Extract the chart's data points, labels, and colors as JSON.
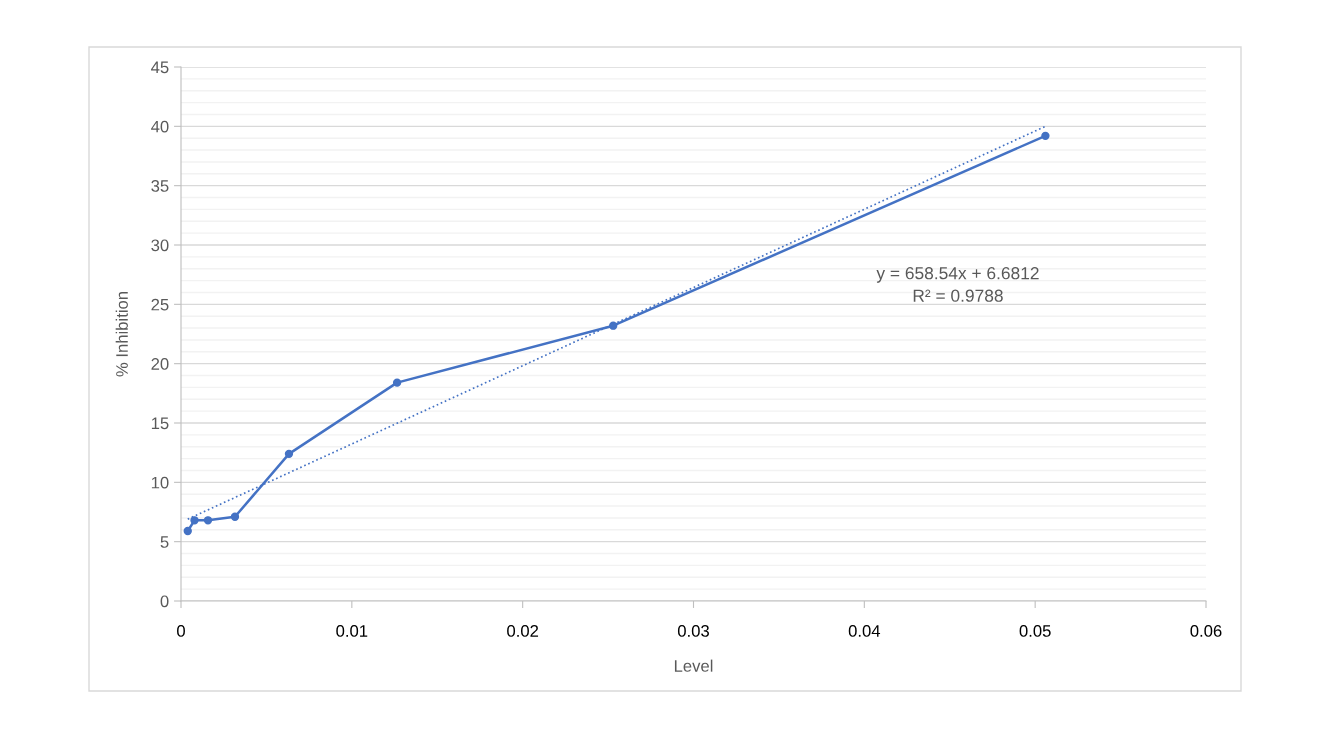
{
  "chart_data": {
    "type": "line",
    "xlabel": "Level",
    "ylabel": "% Inhibition",
    "series": [
      {
        "color": "#4472c4",
        "marker": "circle",
        "line_style": "solid",
        "x": [
          0.000395,
          0.00079,
          0.00158,
          0.00316,
          0.00632,
          0.01265,
          0.0253,
          0.0506
        ],
        "values": [
          5.9,
          6.8,
          6.8,
          7.1,
          12.4,
          18.4,
          23.2,
          39.2
        ]
      },
      {
        "color": "#4472c4",
        "marker": "none",
        "line_style": "dotted",
        "x": [
          0.000395,
          0.0506
        ],
        "values": [
          6.9,
          40.0
        ]
      }
    ],
    "xlim": [
      0,
      0.06
    ],
    "xticks": [
      0,
      0.01,
      0.02,
      0.03,
      0.04,
      0.05,
      0.06
    ],
    "ylim": [
      0,
      45
    ],
    "yticks": [
      0,
      {
        "value": 1,
        "label": null
      },
      {
        "value": 2,
        "label": null
      },
      {
        "value": 3,
        "label": null
      },
      {
        "value": 4,
        "label": null
      },
      5,
      {
        "value": 6,
        "label": null
      },
      {
        "value": 7,
        "label": null
      },
      {
        "value": 8,
        "label": null
      },
      {
        "value": 9,
        "label": null
      },
      10,
      {
        "value": 11,
        "label": null
      },
      {
        "value": 12,
        "label": null
      },
      {
        "value": 13,
        "label": null
      },
      {
        "value": 14,
        "label": null
      },
      15,
      {
        "value": 16,
        "label": null
      },
      {
        "value": 17,
        "label": null
      },
      {
        "value": 18,
        "label": null
      },
      {
        "value": 19,
        "label": null
      },
      20,
      {
        "value": 21,
        "label": null
      },
      {
        "value": 22,
        "label": null
      },
      {
        "value": 23,
        "label": null
      },
      {
        "value": 24,
        "label": null
      },
      25,
      {
        "value": 26,
        "label": null
      },
      {
        "value": 27,
        "label": null
      },
      {
        "value": 28,
        "label": null
      },
      {
        "value": 29,
        "label": null
      },
      30,
      {
        "value": 31,
        "label": null
      },
      {
        "value": 32,
        "label": null
      },
      {
        "value": 33,
        "label": null
      },
      {
        "value": 34,
        "label": null
      },
      35,
      {
        "value": 36,
        "label": null
      },
      {
        "value": 37,
        "label": null
      },
      {
        "value": 38,
        "label": null
      },
      {
        "value": 39,
        "label": null
      },
      40,
      {
        "value": 41,
        "label": null
      },
      {
        "value": 42,
        "label": null
      },
      {
        "value": 43,
        "label": null
      },
      {
        "value": 44,
        "label": null
      },
      45
    ],
    "grid": "y",
    "legend": false,
    "annotations": [
      "y = 658.54x + 6.6812\nR² = 0.9788"
    ]
  }
}
